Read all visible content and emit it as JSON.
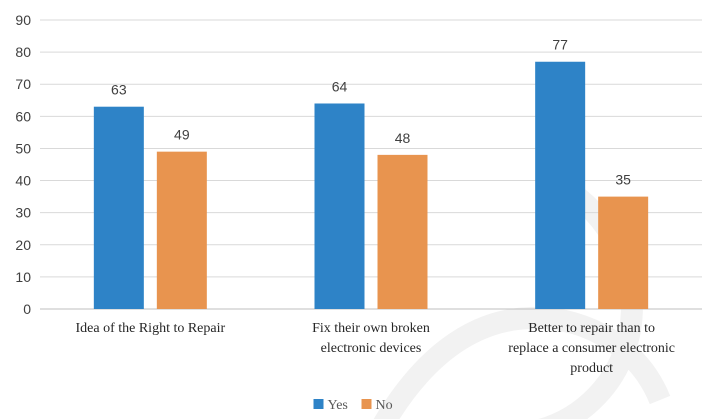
{
  "chart_data": {
    "type": "bar",
    "title": "",
    "xlabel": "",
    "ylabel": "",
    "ylim": [
      0,
      90
    ],
    "y_ticks": [
      0,
      10,
      20,
      30,
      40,
      50,
      60,
      70,
      80,
      90
    ],
    "grid": true,
    "legend_position": "bottom",
    "categories": [
      [
        "Idea of the Right to Repair"
      ],
      [
        "Fix their own broken",
        "electronic devices"
      ],
      [
        "Better to repair than to",
        "replace a consumer electronic",
        "product"
      ]
    ],
    "series": [
      {
        "name": "Yes",
        "color": "#2e83c7",
        "values": [
          63,
          64,
          77
        ]
      },
      {
        "name": "No",
        "color": "#e8944f",
        "values": [
          49,
          48,
          35
        ]
      }
    ]
  }
}
